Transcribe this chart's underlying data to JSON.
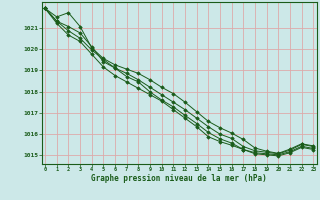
{
  "title": "Graphe pression niveau de la mer (hPa)",
  "bg_color": "#cce8e8",
  "grid_color": "#ddaaaa",
  "line_color": "#1a5c1a",
  "marker_color": "#1a5c1a",
  "xlim": [
    -0.3,
    23.3
  ],
  "ylim": [
    1014.6,
    1022.2
  ],
  "yticks": [
    1015,
    1016,
    1017,
    1018,
    1019,
    1020,
    1021
  ],
  "xticks": [
    0,
    1,
    2,
    3,
    4,
    5,
    6,
    7,
    8,
    9,
    10,
    11,
    12,
    13,
    14,
    15,
    16,
    17,
    18,
    19,
    20,
    21,
    22,
    23
  ],
  "series": [
    [
      1021.9,
      1021.5,
      1021.7,
      1021.05,
      1020.05,
      1019.55,
      1019.25,
      1019.05,
      1018.85,
      1018.55,
      1018.2,
      1017.9,
      1017.5,
      1017.05,
      1016.6,
      1016.3,
      1016.05,
      1015.75,
      1015.35,
      1015.2,
      1015.1,
      1015.3,
      1015.55,
      1015.45
    ],
    [
      1021.9,
      1021.3,
      1021.05,
      1020.75,
      1020.1,
      1019.4,
      1019.1,
      1018.85,
      1018.55,
      1018.2,
      1017.85,
      1017.5,
      1017.15,
      1016.75,
      1016.35,
      1016.0,
      1015.8,
      1015.42,
      1015.22,
      1015.15,
      1015.08,
      1015.25,
      1015.52,
      1015.42
    ],
    [
      1021.9,
      1021.3,
      1020.85,
      1020.5,
      1019.95,
      1019.5,
      1019.1,
      1018.7,
      1018.45,
      1017.98,
      1017.6,
      1017.28,
      1016.88,
      1016.5,
      1016.08,
      1015.78,
      1015.58,
      1015.28,
      1015.13,
      1015.08,
      1015.03,
      1015.18,
      1015.43,
      1015.33
    ],
    [
      1021.9,
      1021.2,
      1020.65,
      1020.35,
      1019.75,
      1019.15,
      1018.75,
      1018.45,
      1018.15,
      1017.85,
      1017.55,
      1017.15,
      1016.75,
      1016.35,
      1015.88,
      1015.65,
      1015.48,
      1015.28,
      1015.08,
      1015.03,
      1014.98,
      1015.13,
      1015.38,
      1015.28
    ]
  ]
}
